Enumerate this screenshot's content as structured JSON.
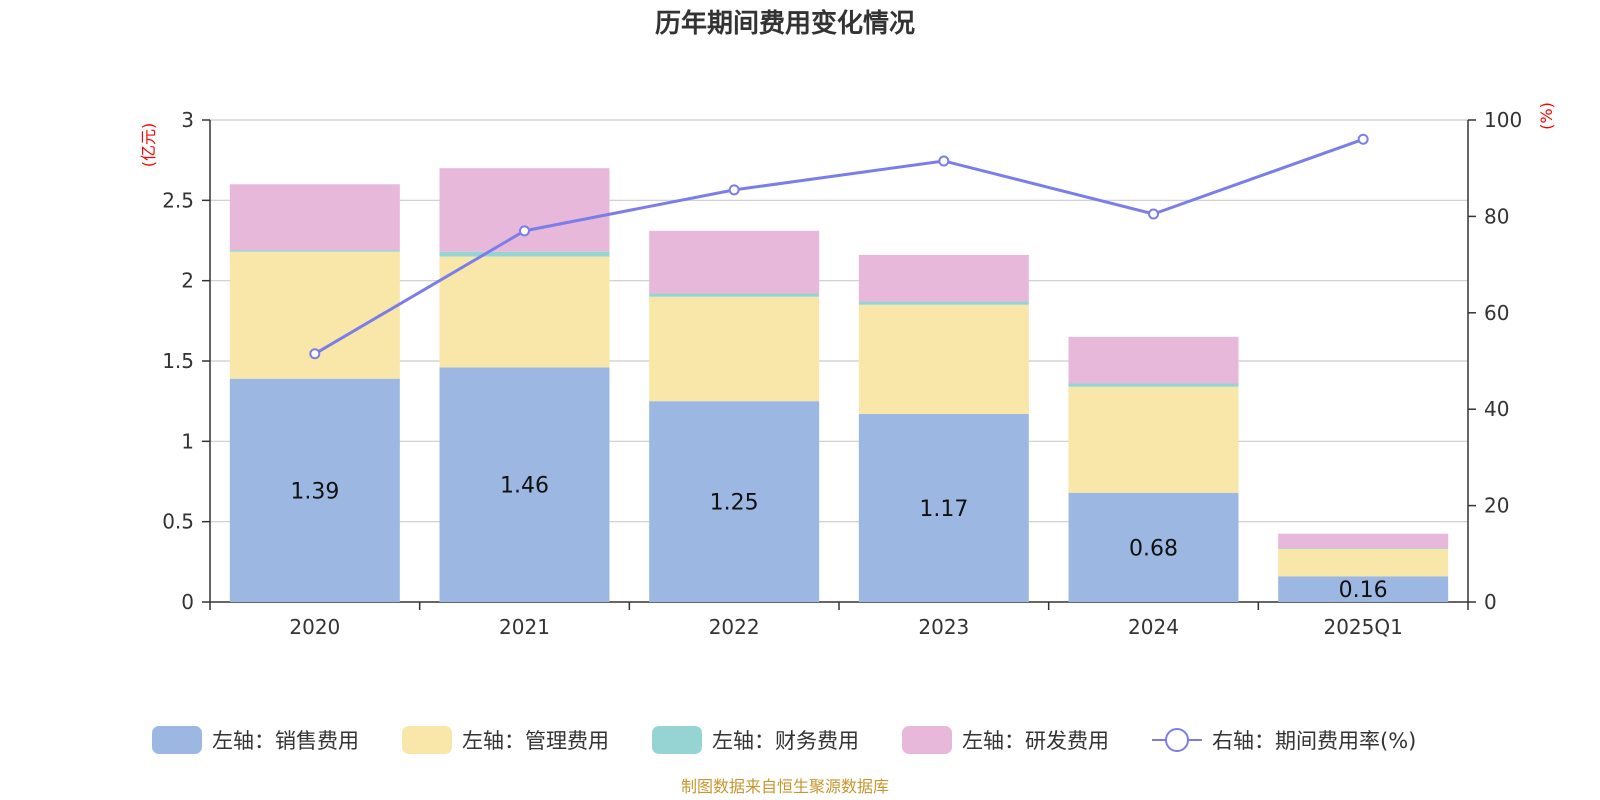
{
  "chart_data": {
    "type": "bar",
    "title": "历年期间费用变化情况",
    "categories": [
      "2020",
      "2021",
      "2022",
      "2023",
      "2024",
      "2025Q1"
    ],
    "left_axis": {
      "unit": "(亿元)",
      "ylim": [
        0,
        3
      ],
      "ticks": [
        "0",
        "0.5",
        "1",
        "1.5",
        "2",
        "2.5",
        "3"
      ],
      "tick_values": [
        0,
        0.5,
        1,
        1.5,
        2,
        2.5,
        3
      ]
    },
    "right_axis": {
      "unit": "(%)",
      "ylim": [
        0,
        100
      ],
      "ticks": [
        "0",
        "20",
        "40",
        "60",
        "80",
        "100"
      ],
      "tick_values": [
        0,
        20,
        40,
        60,
        80,
        100
      ]
    },
    "grid": true,
    "series": [
      {
        "name": "左轴：销售费用",
        "axis": "left",
        "kind": "bar",
        "color": "#9cb8e2",
        "values": [
          1.39,
          1.46,
          1.25,
          1.17,
          0.68,
          0.16
        ],
        "labels": [
          "1.39",
          "1.46",
          "1.25",
          "1.17",
          "0.68",
          "0.16"
        ]
      },
      {
        "name": "左轴：管理费用",
        "axis": "left",
        "kind": "bar",
        "color": "#f8e7a8",
        "values": [
          0.79,
          0.69,
          0.65,
          0.68,
          0.66,
          0.17
        ]
      },
      {
        "name": "左轴：财务费用",
        "axis": "left",
        "kind": "bar",
        "color": "#96d4d3",
        "values": [
          0.01,
          0.03,
          0.02,
          0.02,
          0.02,
          0.005
        ]
      },
      {
        "name": "左轴：研发费用",
        "axis": "left",
        "kind": "bar",
        "color": "#e8b8da",
        "values": [
          0.41,
          0.52,
          0.39,
          0.29,
          0.29,
          0.09
        ]
      },
      {
        "name": "右轴：期间费用率(%)",
        "axis": "right",
        "kind": "line",
        "color": "#7b7ee8",
        "values": [
          51.5,
          77.0,
          85.5,
          91.5,
          80.5,
          96.0
        ]
      }
    ],
    "legend_position": "bottom",
    "source": "制图数据来自恒生聚源数据库"
  }
}
